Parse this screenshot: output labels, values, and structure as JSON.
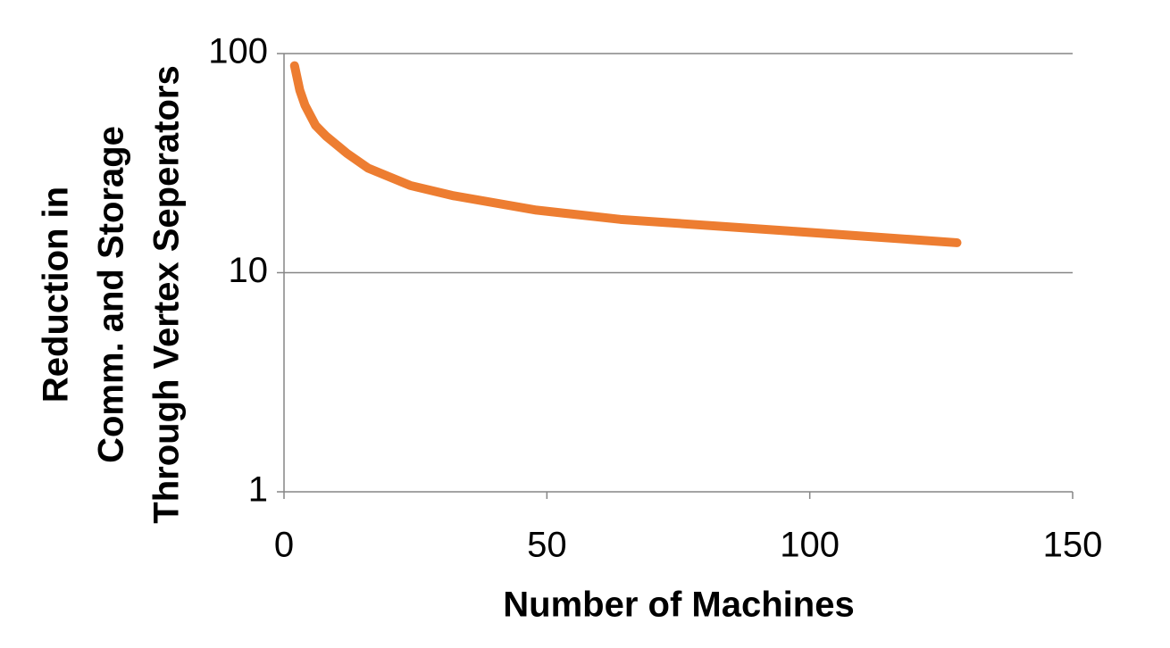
{
  "chart_data": {
    "type": "line",
    "ylabel": [
      "Reduction in",
      "Comm. and Storage",
      "Through Vertex Seperators"
    ],
    "xlabel": "Number of Machines",
    "x": [
      2,
      3,
      4,
      6,
      8,
      12,
      16,
      24,
      32,
      48,
      64,
      96,
      128
    ],
    "series": [
      {
        "color": "#ed7d31",
        "values": [
          88,
          68,
          58,
          47,
          42,
          35,
          30,
          25,
          22.5,
          19.3,
          17.5,
          15.5,
          13.7
        ]
      }
    ],
    "xlim": [
      0,
      150
    ],
    "xticks": [
      0,
      50,
      100,
      150
    ],
    "ylim": [
      1,
      100
    ],
    "yticks": [
      1,
      10,
      100
    ],
    "ylog": true,
    "grid": true
  }
}
